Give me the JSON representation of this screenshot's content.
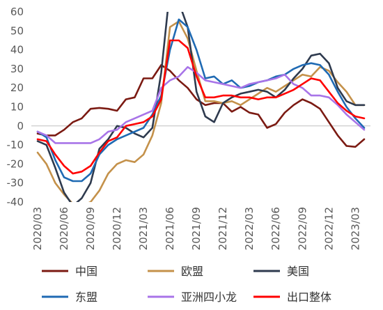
{
  "chart_data": {
    "type": "line",
    "title": "",
    "xlabel": "",
    "ylabel": "",
    "ylim": [
      -40,
      60
    ],
    "yticks": [
      -40,
      -30,
      -20,
      -10,
      0,
      10,
      20,
      30,
      40,
      50,
      60
    ],
    "grid": false,
    "legend_position": "bottom",
    "x": [
      "2020/03",
      "2020/04",
      "2020/05",
      "2020/06",
      "2020/07",
      "2020/08",
      "2020/09",
      "2020/10",
      "2020/11",
      "2020/12",
      "2021/01",
      "2021/02",
      "2021/03",
      "2021/04",
      "2021/05",
      "2021/06",
      "2021/07",
      "2021/08",
      "2021/09",
      "2021/10",
      "2021/11",
      "2021/12",
      "2022/01",
      "2022/02",
      "2022/03",
      "2022/04",
      "2022/05",
      "2022/06",
      "2022/07",
      "2022/08",
      "2022/09",
      "2022/10",
      "2022/11",
      "2022/12",
      "2023/01",
      "2023/02",
      "2023/03",
      "2023/04"
    ],
    "xtick_labels": [
      "2020/03",
      "2020/06",
      "2020/09",
      "2020/12",
      "2021/03",
      "2021/06",
      "2021/09",
      "2021/12",
      "2022/03",
      "2022/06",
      "2022/09",
      "2022/12",
      "2023/03"
    ],
    "series": [
      {
        "name": "中国",
        "color": "#7b1a12",
        "values": [
          -4,
          -5,
          -5,
          -2,
          2,
          4,
          9,
          9.5,
          9,
          8,
          14,
          15,
          25,
          25,
          32,
          29,
          24,
          20,
          14,
          11,
          12,
          12,
          7.5,
          10,
          7,
          6,
          -1,
          1,
          7,
          11,
          14,
          12,
          9,
          2,
          -5,
          -10.5,
          -11,
          -7
        ]
      },
      {
        "name": "欧盟",
        "color": "#c4914a",
        "values": [
          -14,
          -20,
          -30,
          -36,
          -41,
          -42,
          -40,
          -34,
          -25,
          -20,
          -18,
          -19,
          -15,
          -5,
          12,
          52,
          55,
          46,
          29,
          13,
          13,
          12,
          13,
          11,
          14,
          17,
          20,
          18,
          21,
          24,
          27,
          26,
          31,
          29,
          23,
          18,
          11,
          11
        ]
      },
      {
        "name": "美国",
        "color": "#2e3a4e",
        "values": [
          -8,
          -10,
          -22,
          -35,
          -42,
          -38,
          -30,
          -12,
          -7,
          0,
          -1,
          -4,
          -6,
          -1,
          28,
          72,
          65,
          52,
          18,
          5,
          2,
          12,
          15,
          17,
          18,
          19,
          18,
          15,
          19,
          25,
          30,
          37,
          38,
          33,
          20,
          13,
          11,
          11
        ]
      },
      {
        "name": "东盟",
        "color": "#1f6ab3",
        "values": [
          -3,
          -6,
          -18,
          -27,
          -29,
          -29,
          -25,
          -15,
          -10,
          -7,
          -5,
          -3,
          -1,
          6,
          16,
          40,
          56,
          52,
          40,
          25,
          26,
          22,
          24,
          20,
          21,
          23,
          24,
          26,
          27,
          30,
          32,
          33,
          32,
          27,
          18,
          10,
          4,
          -1
        ]
      },
      {
        "name": "亚洲四小龙",
        "color": "#a874e8",
        "values": [
          -3,
          -5,
          -9,
          -9,
          -9,
          -9,
          -9,
          -7,
          -3,
          -2,
          2,
          4,
          6,
          8,
          20,
          24,
          26,
          31,
          28,
          24,
          23,
          22,
          21,
          20,
          22,
          23,
          24,
          25,
          27,
          22,
          20,
          16,
          16,
          15,
          11,
          6,
          2,
          -2
        ]
      },
      {
        "name": "出口整体",
        "color": "#ff0000",
        "values": [
          -7,
          -8,
          -15,
          -21,
          -25,
          -24,
          -21,
          -14,
          -8,
          -6,
          0,
          1,
          2,
          5,
          14,
          45,
          45,
          41,
          26,
          15,
          15,
          16,
          16,
          15,
          15,
          14,
          15,
          15,
          17,
          19,
          22,
          25,
          24,
          18,
          12,
          8,
          5,
          4
        ]
      }
    ]
  }
}
